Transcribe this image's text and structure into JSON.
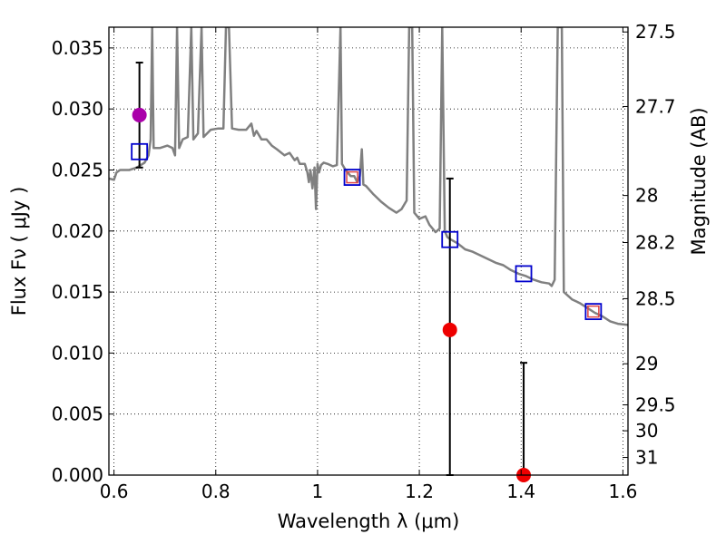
{
  "chart_data": {
    "type": "scatter",
    "xlabel": "Wavelength  λ (μm)",
    "ylabel_left": "Flux  Fν  ( μJy )",
    "ylabel_right": "Magnitude (AB)",
    "xlim": [
      0.59,
      1.61
    ],
    "ylim": [
      0.0,
      0.0367
    ],
    "grid": true,
    "x_ticks": [
      {
        "value": 0.6,
        "label": "0.6"
      },
      {
        "value": 0.8,
        "label": "0.8"
      },
      {
        "value": 1.0,
        "label": "1"
      },
      {
        "value": 1.2,
        "label": "1.2"
      },
      {
        "value": 1.4,
        "label": "1.4"
      },
      {
        "value": 1.6,
        "label": "1.6"
      }
    ],
    "y_ticks": [
      {
        "value": 0.0,
        "label": "0.000"
      },
      {
        "value": 0.005,
        "label": "0.005"
      },
      {
        "value": 0.01,
        "label": "0.010"
      },
      {
        "value": 0.015,
        "label": "0.015"
      },
      {
        "value": 0.02,
        "label": "0.020"
      },
      {
        "value": 0.025,
        "label": "0.025"
      },
      {
        "value": 0.03,
        "label": "0.030"
      },
      {
        "value": 0.035,
        "label": "0.035"
      }
    ],
    "right_ticks": [
      {
        "mag": 27.5,
        "label": "27.5"
      },
      {
        "mag": 27.7,
        "label": "27.7"
      },
      {
        "mag": 28.0,
        "label": "28"
      },
      {
        "mag": 28.2,
        "label": "28.2"
      },
      {
        "mag": 28.5,
        "label": "28.5"
      },
      {
        "mag": 29.0,
        "label": "29"
      },
      {
        "mag": 29.5,
        "label": "29.5"
      },
      {
        "mag": 30.0,
        "label": "30"
      },
      {
        "mag": 31.0,
        "label": "31"
      }
    ],
    "series": [
      {
        "kind": "line",
        "color": "#808080",
        "points": [
          [
            0.59,
            0.0243
          ],
          [
            0.6,
            0.0242
          ],
          [
            0.605,
            0.0248
          ],
          [
            0.612,
            0.025
          ],
          [
            0.63,
            0.025
          ],
          [
            0.645,
            0.0252
          ],
          [
            0.66,
            0.0256
          ],
          [
            0.668,
            0.0262
          ],
          [
            0.672,
            0.0275
          ],
          [
            0.675,
            0.0367
          ],
          [
            0.678,
            0.0268
          ],
          [
            0.69,
            0.0268
          ],
          [
            0.705,
            0.027
          ],
          [
            0.715,
            0.0268
          ],
          [
            0.72,
            0.0262
          ],
          [
            0.724,
            0.0367
          ],
          [
            0.728,
            0.0268
          ],
          [
            0.735,
            0.0275
          ],
          [
            0.745,
            0.0277
          ],
          [
            0.752,
            0.0367
          ],
          [
            0.756,
            0.0275
          ],
          [
            0.765,
            0.028
          ],
          [
            0.772,
            0.0367
          ],
          [
            0.776,
            0.0277
          ],
          [
            0.79,
            0.0283
          ],
          [
            0.805,
            0.0284
          ],
          [
            0.815,
            0.0284
          ],
          [
            0.82,
            0.0367
          ],
          [
            0.826,
            0.0367
          ],
          [
            0.832,
            0.0284
          ],
          [
            0.845,
            0.0283
          ],
          [
            0.86,
            0.0283
          ],
          [
            0.87,
            0.0288
          ],
          [
            0.875,
            0.0278
          ],
          [
            0.88,
            0.0282
          ],
          [
            0.89,
            0.0275
          ],
          [
            0.9,
            0.0275
          ],
          [
            0.91,
            0.027
          ],
          [
            0.92,
            0.0267
          ],
          [
            0.935,
            0.0262
          ],
          [
            0.945,
            0.0264
          ],
          [
            0.955,
            0.0258
          ],
          [
            0.96,
            0.026
          ],
          [
            0.965,
            0.0255
          ],
          [
            0.975,
            0.0255
          ],
          [
            0.98,
            0.0248
          ],
          [
            0.983,
            0.024
          ],
          [
            0.986,
            0.025
          ],
          [
            0.99,
            0.0235
          ],
          [
            0.994,
            0.0252
          ],
          [
            0.997,
            0.0218
          ],
          [
            1.0,
            0.0255
          ],
          [
            1.003,
            0.0248
          ],
          [
            1.007,
            0.0254
          ],
          [
            1.012,
            0.0256
          ],
          [
            1.02,
            0.0255
          ],
          [
            1.03,
            0.0253
          ],
          [
            1.038,
            0.0254
          ],
          [
            1.045,
            0.0367
          ],
          [
            1.048,
            0.0255
          ],
          [
            1.055,
            0.025
          ],
          [
            1.065,
            0.0245
          ],
          [
            1.072,
            0.0245
          ],
          [
            1.078,
            0.024
          ],
          [
            1.083,
            0.0245
          ],
          [
            1.087,
            0.0267
          ],
          [
            1.09,
            0.0238
          ],
          [
            1.095,
            0.0237
          ],
          [
            1.11,
            0.023
          ],
          [
            1.125,
            0.0224
          ],
          [
            1.14,
            0.0219
          ],
          [
            1.155,
            0.0215
          ],
          [
            1.165,
            0.0218
          ],
          [
            1.175,
            0.0225
          ],
          [
            1.18,
            0.0367
          ],
          [
            1.186,
            0.0367
          ],
          [
            1.19,
            0.0215
          ],
          [
            1.2,
            0.021
          ],
          [
            1.212,
            0.0212
          ],
          [
            1.22,
            0.0205
          ],
          [
            1.232,
            0.0199
          ],
          [
            1.24,
            0.0202
          ],
          [
            1.245,
            0.0367
          ],
          [
            1.25,
            0.02
          ],
          [
            1.255,
            0.0195
          ],
          [
            1.262,
            0.0193
          ],
          [
            1.275,
            0.019
          ],
          [
            1.29,
            0.0185
          ],
          [
            1.305,
            0.0183
          ],
          [
            1.32,
            0.018
          ],
          [
            1.335,
            0.0177
          ],
          [
            1.35,
            0.0174
          ],
          [
            1.365,
            0.0172
          ],
          [
            1.38,
            0.0168
          ],
          [
            1.395,
            0.0165
          ],
          [
            1.41,
            0.0163
          ],
          [
            1.425,
            0.016
          ],
          [
            1.44,
            0.0158
          ],
          [
            1.455,
            0.0157
          ],
          [
            1.46,
            0.0155
          ],
          [
            1.466,
            0.016
          ],
          [
            1.472,
            0.0367
          ],
          [
            1.48,
            0.0367
          ],
          [
            1.484,
            0.015
          ],
          [
            1.5,
            0.0144
          ],
          [
            1.515,
            0.0141
          ],
          [
            1.53,
            0.0137
          ],
          [
            1.545,
            0.0133
          ],
          [
            1.56,
            0.013
          ],
          [
            1.575,
            0.0126
          ],
          [
            1.59,
            0.0124
          ],
          [
            1.61,
            0.0123
          ]
        ]
      },
      {
        "kind": "markers",
        "marker": "square-open",
        "color": "#0000cc",
        "points": [
          [
            0.65,
            0.0265
          ],
          [
            1.068,
            0.0244
          ],
          [
            1.26,
            0.0193
          ],
          [
            1.405,
            0.0165
          ],
          [
            1.542,
            0.0134
          ]
        ]
      },
      {
        "kind": "markers",
        "marker": "circle-filled",
        "color": "#aa00aa",
        "points": [
          [
            0.65,
            0.0295
          ]
        ]
      },
      {
        "kind": "markers",
        "marker": "circle-filled",
        "color": "#ee0000",
        "points": [
          [
            1.26,
            0.0119
          ],
          [
            1.405,
            0.0
          ]
        ]
      }
    ],
    "error_bars": [
      {
        "x": 0.65,
        "low": 0.0252,
        "high": 0.0338
      },
      {
        "x": 1.26,
        "low": 0.0,
        "high": 0.0243
      },
      {
        "x": 1.405,
        "low": 0.0,
        "high": 0.0092
      }
    ],
    "model_small_squares": {
      "marker": "square-open",
      "color": "#dd4444",
      "points": [
        [
          1.068,
          0.0244
        ],
        [
          1.542,
          0.0134
        ]
      ]
    }
  }
}
